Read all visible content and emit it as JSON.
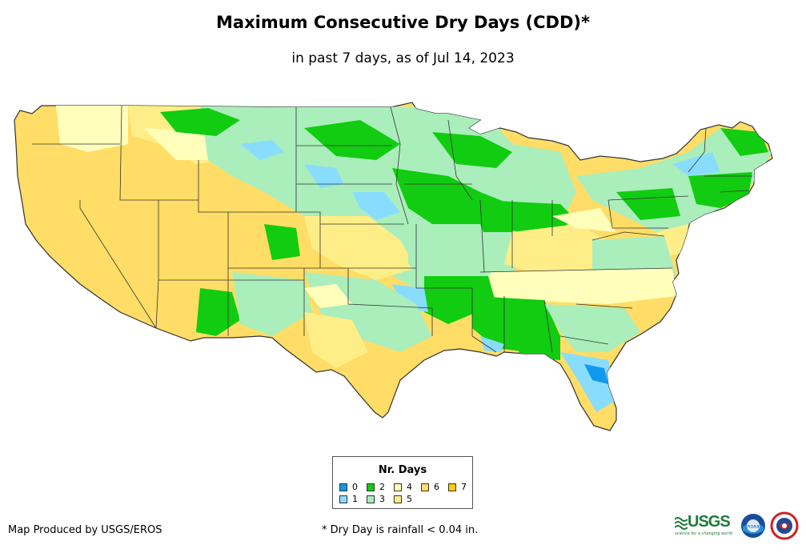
{
  "title": "Maximum Consecutive Dry Days (CDD)*",
  "subtitle": "in past 7 days, as of Jul 14, 2023",
  "legend": {
    "title": "Nr. Days",
    "items": [
      {
        "label": "0",
        "color": "#1199ee"
      },
      {
        "label": "1",
        "color": "#88ddff"
      },
      {
        "label": "2",
        "color": "#11cc11"
      },
      {
        "label": "3",
        "color": "#aaeebb"
      },
      {
        "label": "4",
        "color": "#ffffbb"
      },
      {
        "label": "5",
        "color": "#ffee88"
      },
      {
        "label": "6",
        "color": "#ffdd66"
      },
      {
        "label": "7",
        "color": "#ffcc00"
      }
    ]
  },
  "credit": "Map Produced by USGS/EROS",
  "footnote": "* Dry Day is rainfall < 0.04 in.",
  "logos": {
    "usgs": {
      "name": "usgs-logo",
      "text": "USGS",
      "tagline": "science for a changing world"
    },
    "noaa": {
      "name": "noaa-logo",
      "text": "noaa"
    },
    "nws": {
      "name": "nws-logo"
    }
  },
  "colors": {
    "state_border": "#333333",
    "land_default": "#ffdd66"
  }
}
